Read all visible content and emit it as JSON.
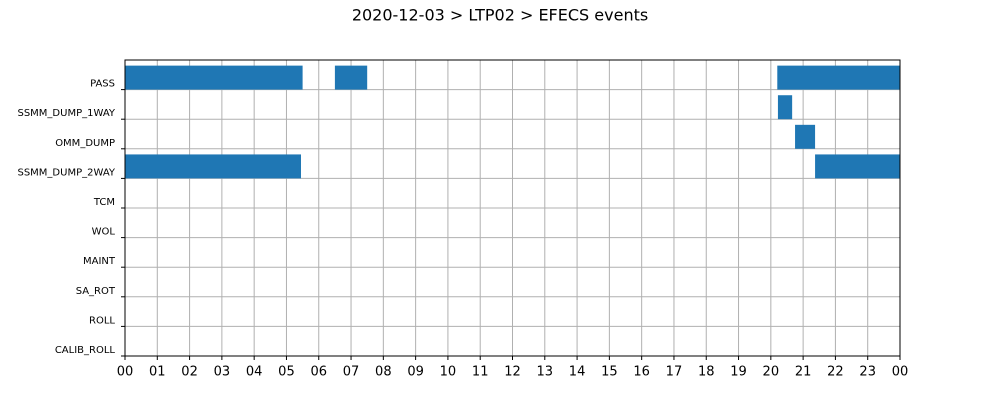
{
  "chart_data": {
    "type": "gantt",
    "title": "2020-12-03 > LTP02 > EFECS events",
    "color": "#1f77b4",
    "grid": true,
    "xlim": [
      0,
      24
    ],
    "xticks": [
      {
        "value": 0,
        "label": "00"
      },
      {
        "value": 1,
        "label": "01"
      },
      {
        "value": 2,
        "label": "02"
      },
      {
        "value": 3,
        "label": "03"
      },
      {
        "value": 4,
        "label": "04"
      },
      {
        "value": 5,
        "label": "05"
      },
      {
        "value": 6,
        "label": "06"
      },
      {
        "value": 7,
        "label": "07"
      },
      {
        "value": 8,
        "label": "08"
      },
      {
        "value": 9,
        "label": "09"
      },
      {
        "value": 10,
        "label": "10"
      },
      {
        "value": 11,
        "label": "11"
      },
      {
        "value": 12,
        "label": "12"
      },
      {
        "value": 13,
        "label": "13"
      },
      {
        "value": 14,
        "label": "14"
      },
      {
        "value": 15,
        "label": "15"
      },
      {
        "value": 16,
        "label": "16"
      },
      {
        "value": 17,
        "label": "17"
      },
      {
        "value": 18,
        "label": "18"
      },
      {
        "value": 19,
        "label": "19"
      },
      {
        "value": 20,
        "label": "20"
      },
      {
        "value": 21,
        "label": "21"
      },
      {
        "value": 22,
        "label": "22"
      },
      {
        "value": 23,
        "label": "23"
      },
      {
        "value": 24,
        "label": "00"
      }
    ],
    "rows": [
      {
        "name": "PASS",
        "intervals": [
          [
            0,
            5.5
          ],
          [
            6.5,
            7.5
          ],
          [
            20.2,
            24
          ]
        ]
      },
      {
        "name": "SSMM_DUMP_1WAY",
        "intervals": [
          [
            20.22,
            20.66
          ]
        ]
      },
      {
        "name": "OMM_DUMP",
        "intervals": [
          [
            20.75,
            21.37
          ]
        ]
      },
      {
        "name": "SSMM_DUMP_2WAY",
        "intervals": [
          [
            0,
            5.45
          ],
          [
            21.37,
            24
          ]
        ]
      },
      {
        "name": "TCM",
        "intervals": []
      },
      {
        "name": "WOL",
        "intervals": []
      },
      {
        "name": "MAINT",
        "intervals": []
      },
      {
        "name": "SA_ROT",
        "intervals": []
      },
      {
        "name": "ROLL",
        "intervals": []
      },
      {
        "name": "CALIB_ROLL",
        "intervals": []
      }
    ]
  }
}
